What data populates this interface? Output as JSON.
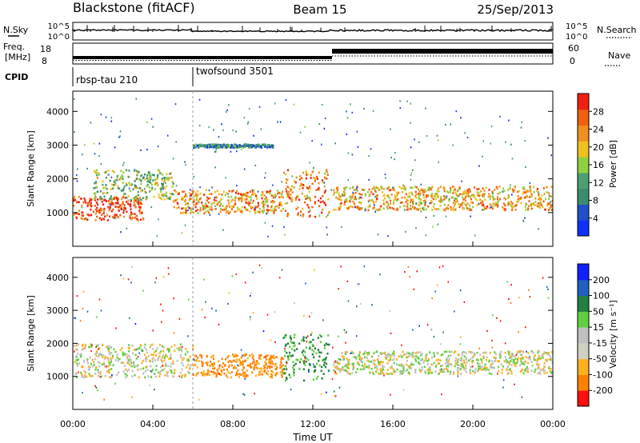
{
  "header": {
    "title": "Blackstone (fitACF)",
    "beam": "Beam 15",
    "date": "25/Sep/2013"
  },
  "summary_panels": {
    "nsky_label": "N.Sky",
    "nsearch_label": "N.Search",
    "freq_label_1": "Freq.",
    "freq_label_2": "[MHz]",
    "nave_label": "Nave",
    "cpid_label": "CPID",
    "n_ticks": [
      "10^5",
      "10^0"
    ],
    "freq_ticks": [
      "18",
      "8"
    ],
    "nave_ticks": [
      "60",
      "0"
    ],
    "cpid_segments": [
      {
        "name": "rbsp-tau 210",
        "start_hour": 0,
        "end_hour": 6
      },
      {
        "name": "twofsound 3501",
        "start_hour": 6,
        "end_hour": 24
      }
    ]
  },
  "colors": {
    "power_scale": [
      "#1030ff",
      "#2050c8",
      "#3a8c6c",
      "#4aa070",
      "#90d040",
      "#f0c020",
      "#f09020",
      "#f06010",
      "#f02010"
    ],
    "velocity_scale": [
      "#ff1010",
      "#ff8000",
      "#ffb020",
      "#d0d0c0",
      "#c0c0c0",
      "#60d040",
      "#208040",
      "#2060c0",
      "#1020ff"
    ]
  },
  "chart_data": [
    {
      "type": "heatmap",
      "title": "",
      "ylabel": "Slant Range [km]",
      "xlabel": "",
      "ylim": [
        0,
        4600
      ],
      "xlim_hours": [
        0,
        24
      ],
      "y_ticks": [
        "1000",
        "2000",
        "3000",
        "4000"
      ],
      "colorbar": {
        "label": "Power [dB]",
        "range": [
          0,
          30
        ],
        "ticks": [
          "4",
          "8",
          "12",
          "16",
          "20",
          "24",
          "28"
        ]
      },
      "bands": [
        {
          "start_hour": 0.0,
          "end_hour": 3.5,
          "range_low_km": 800,
          "range_high_km": 1500,
          "power_db": 27
        },
        {
          "start_hour": 1.0,
          "end_hour": 5.0,
          "range_low_km": 1400,
          "range_high_km": 2300,
          "power_db": 14
        },
        {
          "start_hour": 5.0,
          "end_hour": 10.5,
          "range_low_km": 1000,
          "range_high_km": 1700,
          "power_db": 21
        },
        {
          "start_hour": 10.5,
          "end_hour": 12.8,
          "range_low_km": 900,
          "range_high_km": 2300,
          "power_db": 23
        },
        {
          "start_hour": 13.0,
          "end_hour": 24.0,
          "range_low_km": 1100,
          "range_high_km": 1800,
          "power_db": 20
        },
        {
          "start_hour": 6.0,
          "end_hour": 10.0,
          "range_low_km": 2950,
          "range_high_km": 3050,
          "power_db": 8
        }
      ]
    },
    {
      "type": "heatmap",
      "title": "",
      "ylabel": "Slant Range [km]",
      "xlabel": "Time UT",
      "ylim": [
        0,
        4600
      ],
      "xlim_hours": [
        0,
        24
      ],
      "x_ticks": [
        "00:00",
        "04:00",
        "08:00",
        "12:00",
        "16:00",
        "20:00",
        "00:00"
      ],
      "y_ticks": [
        "1000",
        "2000",
        "3000",
        "4000"
      ],
      "colorbar": {
        "label": "Velocity [m s⁻¹]",
        "ticks": [
          "200",
          "100",
          "50",
          "15",
          "-15",
          "-50",
          "-100",
          "-200"
        ]
      },
      "bands": [
        {
          "start_hour": 0.0,
          "end_hour": 6.0,
          "range_low_km": 1000,
          "range_high_km": 2000,
          "velocity": 0
        },
        {
          "start_hour": 6.0,
          "end_hour": 10.5,
          "range_low_km": 1000,
          "range_high_km": 1700,
          "velocity": -60
        },
        {
          "start_hour": 10.5,
          "end_hour": 12.8,
          "range_low_km": 900,
          "range_high_km": 2300,
          "velocity": 60
        },
        {
          "start_hour": 13.0,
          "end_hour": 24.0,
          "range_low_km": 1100,
          "range_high_km": 1800,
          "velocity": 0
        }
      ]
    }
  ]
}
